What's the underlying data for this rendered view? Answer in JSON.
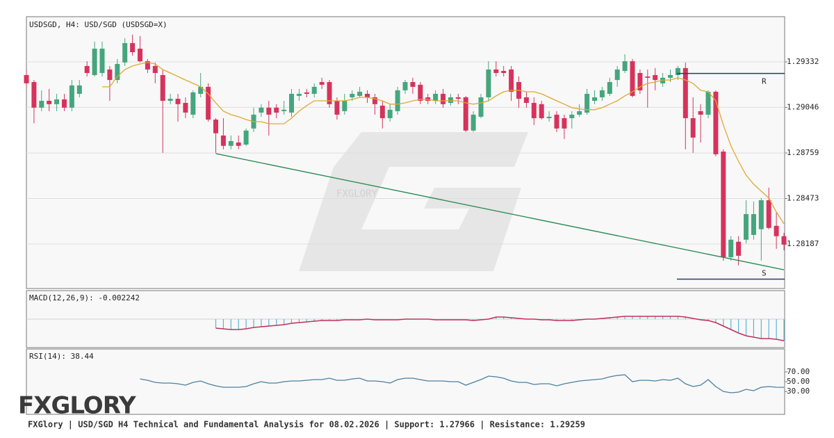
{
  "chart_data": {
    "type": "candlestick",
    "title": "USDSGD, H4: USD/SGD (USDSGD=X)",
    "watermark": "FXGLORY",
    "logo": "FXGLORY",
    "footer": "FXGlory | USD/SGD H4 Technical and Fundamental Analysis for 08.02.2026 | Support: 1.27966 | Resistance: 1.29259",
    "up_color": "#45a67d",
    "down_color": "#d6335c",
    "ylim": [
      1.27907,
      1.29616
    ],
    "yticks": [
      1.29332,
      1.29046,
      1.28759,
      1.28473,
      1.28187
    ],
    "grid": true,
    "open": [
      1.29249,
      1.29205,
      1.29044,
      1.29087,
      1.29066,
      1.29096,
      1.29044,
      1.29131,
      1.29306,
      1.29249,
      1.29262,
      1.29284,
      1.29218,
      1.29328,
      1.2945,
      1.29415,
      1.29336,
      1.29306,
      1.29249,
      1.29087,
      1.291,
      1.29074,
      1.29,
      1.29131,
      1.29175,
      1.28969,
      1.28869,
      1.28804,
      1.28825,
      1.28812,
      1.28913,
      1.29013,
      1.29044,
      1.29044,
      1.29022,
      1.29013,
      1.29118,
      1.2914,
      1.29131,
      1.29205,
      1.29205,
      1.29087,
      1.29022,
      1.29109,
      1.29118,
      1.29131,
      1.29109,
      1.29057,
      1.28978,
      1.29022,
      1.29153,
      1.29205,
      1.29188,
      1.29109,
      1.29087,
      1.29131,
      1.29074,
      1.29109,
      1.29109,
      1.289,
      1.28987,
      1.29109,
      1.29284,
      1.29275,
      1.29284,
      1.29205,
      1.29109,
      1.29074,
      1.29066,
      1.28978,
      1.29,
      1.28978,
      1.28978,
      1.29,
      1.29013,
      1.29087,
      1.29109,
      1.29131,
      1.29218,
      1.29275,
      1.29336,
      1.29262,
      1.2924,
      1.29249,
      1.29197,
      1.29232,
      1.29249,
      1.29293,
      1.28978,
      1.29022,
      1.29,
      1.29144,
      1.28768,
      1.28104,
      1.28201,
      1.28214,
      1.28244,
      1.2828,
      1.28462,
      1.28301,
      1.28236
    ],
    "high": [
      1.29284,
      1.29218,
      1.29153,
      1.29162,
      1.29131,
      1.29131,
      1.29218,
      1.29218,
      1.29336,
      1.29459,
      1.29459,
      1.29306,
      1.2935,
      1.29481,
      1.29503,
      1.29494,
      1.2935,
      1.29328,
      1.29284,
      1.29131,
      1.29131,
      1.29109,
      1.29153,
      1.29262,
      1.29197,
      1.28978,
      1.28978,
      1.28869,
      1.28869,
      1.28913,
      1.29044,
      1.29066,
      1.29087,
      1.29066,
      1.29087,
      1.29162,
      1.29162,
      1.29162,
      1.29197,
      1.29232,
      1.29218,
      1.29109,
      1.29131,
      1.29153,
      1.29175,
      1.29153,
      1.29131,
      1.29087,
      1.29066,
      1.29175,
      1.29218,
      1.29232,
      1.29205,
      1.29131,
      1.29153,
      1.29162,
      1.29131,
      1.29131,
      1.29118,
      1.29022,
      1.29131,
      1.29336,
      1.29336,
      1.29306,
      1.29306,
      1.2924,
      1.29144,
      1.29109,
      1.29087,
      1.29022,
      1.29022,
      1.29,
      1.29022,
      1.29066,
      1.29162,
      1.29153,
      1.29175,
      1.29232,
      1.29306,
      1.2938,
      1.2935,
      1.29284,
      1.29284,
      1.29293,
      1.29262,
      1.29284,
      1.29306,
      1.29328,
      1.29109,
      1.29066,
      1.29153,
      1.29153,
      1.28782,
      1.28236,
      1.28236,
      1.28462,
      1.28454,
      1.28476,
      1.28541,
      1.28388,
      1.28257
    ],
    "low": [
      1.29175,
      1.28946,
      1.29022,
      1.29022,
      1.29022,
      1.29022,
      1.29022,
      1.29109,
      1.2924,
      1.2924,
      1.2924,
      1.29087,
      1.29197,
      1.29306,
      1.29371,
      1.29328,
      1.29262,
      1.29197,
      1.2876,
      1.29066,
      1.28956,
      1.28978,
      1.28978,
      1.29109,
      1.28956,
      1.2876,
      1.28782,
      1.28782,
      1.28782,
      1.28804,
      1.28891,
      1.28987,
      1.28869,
      1.28978,
      1.29,
      1.28987,
      1.29087,
      1.29109,
      1.29109,
      1.29162,
      1.29044,
      1.28969,
      1.29,
      1.29087,
      1.29109,
      1.29074,
      1.29,
      1.28913,
      1.28956,
      1.29,
      1.29131,
      1.29131,
      1.29066,
      1.29066,
      1.29066,
      1.29044,
      1.29057,
      1.29066,
      1.28891,
      1.28891,
      1.28978,
      1.29087,
      1.2924,
      1.2924,
      1.29087,
      1.29044,
      1.29044,
      1.28935,
      1.28969,
      1.28956,
      1.28891,
      1.28847,
      1.28913,
      1.28987,
      1.29,
      1.29066,
      1.29087,
      1.29118,
      1.29175,
      1.29262,
      1.29109,
      1.29131,
      1.29044,
      1.29153,
      1.29175,
      1.29205,
      1.29218,
      1.28782,
      1.2876,
      1.28825,
      1.28978,
      1.28738,
      1.28082,
      1.28082,
      1.28052,
      1.28191,
      1.28214,
      1.28082,
      1.2828,
      1.28156,
      1.28147
    ],
    "close": [
      1.29197,
      1.29044,
      1.29087,
      1.29066,
      1.29096,
      1.29044,
      1.29184,
      1.29184,
      1.29262,
      1.29415,
      1.29415,
      1.29218,
      1.29319,
      1.2945,
      1.29393,
      1.29336,
      1.29284,
      1.29262,
      1.29087,
      1.291,
      1.29066,
      1.29013,
      1.2914,
      1.29175,
      1.28969,
      1.28883,
      1.28804,
      1.28834,
      1.28804,
      1.289,
      1.29,
      1.29044,
      1.29,
      1.29013,
      1.29031,
      1.29131,
      1.29131,
      1.29131,
      1.29175,
      1.29188,
      1.29066,
      1.29,
      1.29087,
      1.29131,
      1.29144,
      1.29109,
      1.29066,
      1.28978,
      1.29031,
      1.29153,
      1.29205,
      1.29175,
      1.29087,
      1.29087,
      1.29131,
      1.29066,
      1.29109,
      1.291,
      1.289,
      1.29,
      1.29109,
      1.29284,
      1.29262,
      1.29262,
      1.29144,
      1.291,
      1.29074,
      1.28978,
      1.28978,
      1.28987,
      1.28913,
      1.28913,
      1.29,
      1.29022,
      1.29131,
      1.29109,
      1.29153,
      1.29205,
      1.29284,
      1.29336,
      1.29118,
      1.29153,
      1.29232,
      1.29218,
      1.29232,
      1.29249,
      1.29293,
      1.28978,
      1.28856,
      1.29,
      1.29144,
      1.28751,
      1.28104,
      1.28214,
      1.28113,
      1.28375,
      1.28375,
      1.28462,
      1.28288,
      1.28236,
      1.28183
    ],
    "ma": {
      "color": "#e0a830",
      "values": [
        null,
        null,
        null,
        null,
        null,
        null,
        null,
        null,
        null,
        null,
        1.29175,
        1.29175,
        1.2924,
        1.29284,
        1.29306,
        1.29319,
        1.29328,
        1.29319,
        1.29284,
        1.29262,
        1.2924,
        1.29218,
        1.29197,
        1.29175,
        1.29131,
        1.29074,
        1.29022,
        1.29,
        1.28987,
        1.28969,
        1.28956,
        1.28956,
        1.28943,
        1.28943,
        1.28943,
        1.28978,
        1.29022,
        1.29057,
        1.29087,
        1.29087,
        1.29087,
        1.29087,
        1.29087,
        1.29096,
        1.29109,
        1.29109,
        1.291,
        1.29087,
        1.29066,
        1.29066,
        1.29074,
        1.29087,
        1.29096,
        1.29096,
        1.29087,
        1.29087,
        1.29087,
        1.29087,
        1.29074,
        1.29066,
        1.29074,
        1.29087,
        1.29118,
        1.29144,
        1.29153,
        1.29153,
        1.29144,
        1.29144,
        1.29131,
        1.29109,
        1.29087,
        1.29066,
        1.29044,
        1.29035,
        1.29031,
        1.29031,
        1.29044,
        1.29066,
        1.29087,
        1.29118,
        1.29144,
        1.29175,
        1.29197,
        1.29205,
        1.29218,
        1.29218,
        1.29232,
        1.29218,
        1.29197,
        1.29153,
        1.29144,
        1.29087,
        1.28935,
        1.28804,
        1.28707,
        1.2862,
        1.28563,
        1.28519,
        1.28476,
        1.28388,
        1.28314
      ]
    },
    "trendline": {
      "color": "#2e8b57",
      "values": [
        1.28755,
        1.28025
      ]
    },
    "levels": [
      {
        "name": "R",
        "value": 1.29259
      },
      {
        "name": "S",
        "value": 1.27966
      }
    ],
    "level_color": "#2a3a6a",
    "macd": {
      "title": "MACD(12,26,9): -0.002242",
      "ylim": [
        -0.00296,
        0.00296
      ],
      "bar_color": "#5ab4d6",
      "color": "#c0305a",
      "values": [
        null,
        null,
        null,
        null,
        null,
        null,
        null,
        null,
        null,
        null,
        null,
        null,
        null,
        null,
        null,
        null,
        null,
        null,
        null,
        null,
        null,
        null,
        null,
        null,
        null,
        -0.00094,
        -0.001012,
        -0.001085,
        -0.001085,
        -0.001012,
        -0.000868,
        -0.000795,
        -0.000723,
        -0.000651,
        -0.000578,
        -0.000434,
        -0.000362,
        -0.000289,
        -0.000217,
        -0.000145,
        -0.000145,
        -0.000145,
        -7.2e-05,
        -7.2e-05,
        -7.2e-05,
        0,
        -7.2e-05,
        -7.2e-05,
        -7.2e-05,
        -7.2e-05,
        0,
        0,
        0,
        0,
        -7.2e-05,
        -7.2e-05,
        -7.2e-05,
        -7.2e-05,
        -7.2e-05,
        -0.000145,
        -7.2e-05,
        0,
        0.000217,
        0.000217,
        0.000145,
        7.2e-05,
        0,
        0,
        -7.2e-05,
        -7.2e-05,
        -0.000145,
        -0.000145,
        -0.000145,
        -7.2e-05,
        0,
        0,
        7.2e-05,
        0.000145,
        0.000217,
        0.000289,
        0.000289,
        0.000289,
        0.000289,
        0.000289,
        0.000289,
        0.000289,
        0.000289,
        0.000217,
        7.2e-05,
        -7.2e-05,
        -0.000145,
        -0.000362,
        -0.000723,
        -0.001085,
        -0.001446,
        -0.001735,
        -0.00188,
        -0.002024,
        -0.002024,
        -0.002097,
        -0.002242
      ]
    },
    "rsi": {
      "title": "RSI(14): 38.44",
      "ylim": [
        -17,
        117
      ],
      "color": "#4a7fa0",
      "yticks": [
        {
          "value": 70,
          "label": "70.00"
        },
        {
          "value": 50,
          "label": "50.00"
        },
        {
          "value": 30,
          "label": "30.00"
        }
      ],
      "values": [
        null,
        null,
        null,
        null,
        null,
        null,
        null,
        null,
        null,
        null,
        null,
        null,
        null,
        null,
        null,
        55.71,
        52.86,
        48.57,
        47.14,
        47.14,
        45.71,
        42.86,
        48.57,
        51.43,
        45.71,
        41.43,
        38.57,
        38.57,
        38.57,
        40,
        45.71,
        50,
        47.14,
        47.14,
        50,
        51.43,
        51.43,
        52.86,
        54.29,
        54.29,
        57.14,
        52.86,
        52.86,
        55.71,
        57.14,
        51.43,
        51.43,
        50,
        47.14,
        54.29,
        57.14,
        57.14,
        54.29,
        51.43,
        51.43,
        51.43,
        50,
        50,
        42.86,
        48.57,
        54.29,
        61.43,
        60,
        57.14,
        51.43,
        48.57,
        48.57,
        44.29,
        45.71,
        45.71,
        41.43,
        45.71,
        48.57,
        51.43,
        52.86,
        54.29,
        55.71,
        60,
        62.86,
        64.29,
        50,
        52.86,
        52.86,
        51.43,
        54.29,
        52.86,
        57.14,
        45.71,
        40,
        42.86,
        54.29,
        40,
        30,
        27.14,
        28.57,
        34.29,
        31.43,
        38.57,
        40,
        38.57,
        38.44
      ]
    }
  }
}
